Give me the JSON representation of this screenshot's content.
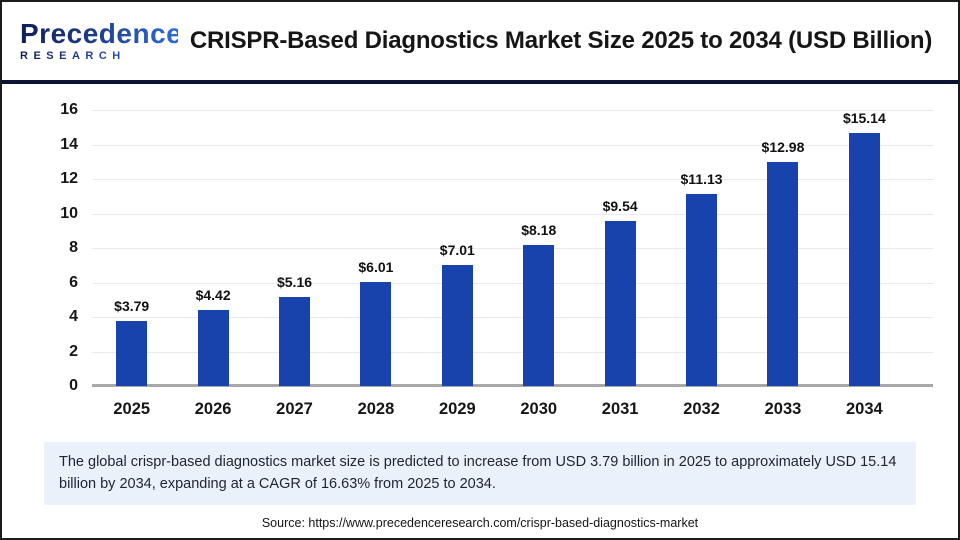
{
  "header": {
    "logo": {
      "name": "Precedence",
      "sub": "RESEARCH"
    },
    "title": "CRISPR-Based Diagnostics Market Size 2025 to 2034 (USD Billion)"
  },
  "chart_data": {
    "type": "bar",
    "title": "CRISPR-Based Diagnostics Market Size 2025 to 2034 (USD Billion)",
    "categories": [
      "2025",
      "2026",
      "2027",
      "2028",
      "2029",
      "2030",
      "2031",
      "2032",
      "2033",
      "2034"
    ],
    "values": [
      3.79,
      4.42,
      5.16,
      6.01,
      7.01,
      8.18,
      9.54,
      11.13,
      12.98,
      15.14
    ],
    "data_labels": [
      "$3.79",
      "$4.42",
      "$5.16",
      "$6.01",
      "$7.01",
      "$8.18",
      "$9.54",
      "$11.13",
      "$12.98",
      "$15.14"
    ],
    "value_prefix": "$",
    "xlabel": "",
    "ylabel": "",
    "ylim": [
      0,
      16
    ],
    "ytick_step": 2,
    "grid": true,
    "legend": "none",
    "bar_color": "#1843ad",
    "gridline_color": "#e9e9ec",
    "baseline_color": "#a8a8a8"
  },
  "summary": {
    "text": "The global crispr-based diagnostics market size is predicted to increase from USD 3.79 billion in 2025 to approximately USD 15.14 billion by 2034, expanding at a CAGR of 16.63% from 2025 to 2034."
  },
  "source": {
    "text": "Source: https://www.precedenceresearch.com/crispr-based-diagnostics-market"
  },
  "colors": {
    "accent_navy": "#0c1335",
    "logo_dark": "#131f54",
    "logo_blue": "#2e6bd6",
    "summary_bg": "#e9f1fb"
  }
}
